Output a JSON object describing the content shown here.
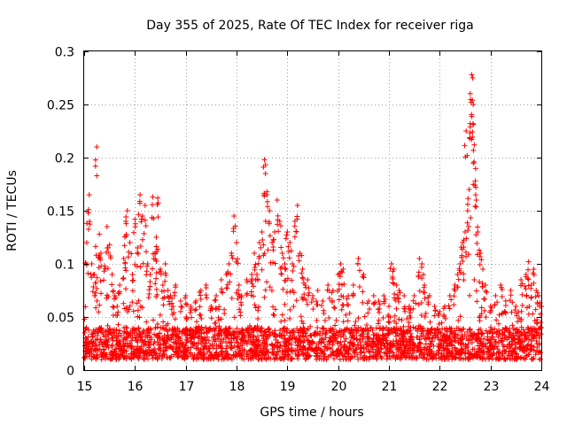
{
  "chart_data": {
    "type": "scatter",
    "title": "Day 355 of 2025, Rate Of TEC Index for receiver riga",
    "xlabel": "GPS time / hours",
    "ylabel": "ROTI / TECUs",
    "xlim": [
      15,
      24
    ],
    "ylim": [
      0,
      0.3
    ],
    "x_ticks": [
      "15",
      "16",
      "17",
      "18",
      "19",
      "20",
      "21",
      "22",
      "23",
      "24"
    ],
    "y_ticks": [
      "0",
      "0.05",
      "0.1",
      "0.15",
      "0.2",
      "0.25",
      "0.3"
    ],
    "grid": true,
    "marker": "+",
    "color": "#ff0000",
    "baseline_range": [
      0.01,
      0.04
    ],
    "series": [
      {
        "name": "ROTI",
        "points": [
          [
            15.05,
            0.12
          ],
          [
            15.08,
            0.148
          ],
          [
            15.1,
            0.165
          ],
          [
            15.15,
            0.1
          ],
          [
            15.2,
            0.09
          ],
          [
            15.22,
            0.082
          ],
          [
            15.25,
            0.21
          ],
          [
            15.3,
            0.128
          ],
          [
            15.33,
            0.11
          ],
          [
            15.4,
            0.098
          ],
          [
            15.45,
            0.135
          ],
          [
            15.5,
            0.118
          ],
          [
            15.55,
            0.09
          ],
          [
            15.6,
            0.07
          ],
          [
            15.65,
            0.06
          ],
          [
            15.7,
            0.08
          ],
          [
            15.78,
            0.105
          ],
          [
            15.82,
            0.14
          ],
          [
            15.85,
            0.15
          ],
          [
            15.9,
            0.12
          ],
          [
            15.95,
            0.09
          ],
          [
            16.0,
            0.142
          ],
          [
            16.05,
            0.115
          ],
          [
            16.1,
            0.165
          ],
          [
            16.15,
            0.145
          ],
          [
            16.2,
            0.155
          ],
          [
            16.25,
            0.1
          ],
          [
            16.3,
            0.09
          ],
          [
            16.35,
            0.163
          ],
          [
            16.4,
            0.11
          ],
          [
            16.42,
            0.125
          ],
          [
            16.45,
            0.162
          ],
          [
            16.5,
            0.095
          ],
          [
            16.55,
            0.08
          ],
          [
            16.6,
            0.1
          ],
          [
            16.65,
            0.075
          ],
          [
            16.7,
            0.07
          ],
          [
            16.75,
            0.06
          ],
          [
            16.8,
            0.08
          ],
          [
            16.9,
            0.065
          ],
          [
            17.0,
            0.07
          ],
          [
            17.1,
            0.06
          ],
          [
            17.2,
            0.065
          ],
          [
            17.3,
            0.075
          ],
          [
            17.4,
            0.08
          ],
          [
            17.5,
            0.06
          ],
          [
            17.6,
            0.07
          ],
          [
            17.7,
            0.085
          ],
          [
            17.8,
            0.09
          ],
          [
            17.85,
            0.1
          ],
          [
            17.9,
            0.11
          ],
          [
            17.95,
            0.145
          ],
          [
            18.0,
            0.12
          ],
          [
            18.05,
            0.08
          ],
          [
            18.1,
            0.07
          ],
          [
            18.2,
            0.085
          ],
          [
            18.3,
            0.09
          ],
          [
            18.35,
            0.11
          ],
          [
            18.4,
            0.09
          ],
          [
            18.45,
            0.12
          ],
          [
            18.5,
            0.13
          ],
          [
            18.55,
            0.198
          ],
          [
            18.57,
            0.185
          ],
          [
            18.6,
            0.165
          ],
          [
            18.65,
            0.15
          ],
          [
            18.7,
            0.12
          ],
          [
            18.75,
            0.13
          ],
          [
            18.8,
            0.16
          ],
          [
            18.85,
            0.14
          ],
          [
            18.9,
            0.11
          ],
          [
            18.95,
            0.1
          ],
          [
            19.0,
            0.13
          ],
          [
            19.05,
            0.12
          ],
          [
            19.1,
            0.1
          ],
          [
            19.15,
            0.14
          ],
          [
            19.2,
            0.155
          ],
          [
            19.25,
            0.11
          ],
          [
            19.3,
            0.095
          ],
          [
            19.35,
            0.08
          ],
          [
            19.4,
            0.085
          ],
          [
            19.5,
            0.07
          ],
          [
            19.6,
            0.075
          ],
          [
            19.7,
            0.065
          ],
          [
            19.8,
            0.08
          ],
          [
            19.9,
            0.075
          ],
          [
            20.0,
            0.09
          ],
          [
            20.05,
            0.1
          ],
          [
            20.1,
            0.095
          ],
          [
            20.2,
            0.07
          ],
          [
            20.3,
            0.08
          ],
          [
            20.4,
            0.105
          ],
          [
            20.5,
            0.09
          ],
          [
            20.6,
            0.065
          ],
          [
            20.7,
            0.07
          ],
          [
            20.8,
            0.065
          ],
          [
            20.9,
            0.07
          ],
          [
            21.0,
            0.06
          ],
          [
            21.05,
            0.1
          ],
          [
            21.1,
            0.095
          ],
          [
            21.15,
            0.08
          ],
          [
            21.2,
            0.075
          ],
          [
            21.3,
            0.07
          ],
          [
            21.4,
            0.06
          ],
          [
            21.5,
            0.07
          ],
          [
            21.6,
            0.105
          ],
          [
            21.65,
            0.1
          ],
          [
            21.7,
            0.08
          ],
          [
            21.8,
            0.07
          ],
          [
            21.9,
            0.06
          ],
          [
            22.0,
            0.055
          ],
          [
            22.1,
            0.06
          ],
          [
            22.2,
            0.07
          ],
          [
            22.3,
            0.08
          ],
          [
            22.35,
            0.09
          ],
          [
            22.4,
            0.1
          ],
          [
            22.45,
            0.12
          ],
          [
            22.5,
            0.13
          ],
          [
            22.52,
            0.225
          ],
          [
            22.55,
            0.15
          ],
          [
            22.58,
            0.17
          ],
          [
            22.6,
            0.232
          ],
          [
            22.62,
            0.252
          ],
          [
            22.63,
            0.278
          ],
          [
            22.65,
            0.275
          ],
          [
            22.66,
            0.25
          ],
          [
            22.68,
            0.212
          ],
          [
            22.7,
            0.178
          ],
          [
            22.72,
            0.16
          ],
          [
            22.75,
            0.13
          ],
          [
            22.8,
            0.11
          ],
          [
            22.85,
            0.095
          ],
          [
            22.9,
            0.08
          ],
          [
            23.0,
            0.06
          ],
          [
            23.1,
            0.07
          ],
          [
            23.2,
            0.08
          ],
          [
            23.3,
            0.065
          ],
          [
            23.4,
            0.075
          ],
          [
            23.5,
            0.06
          ],
          [
            23.6,
            0.085
          ],
          [
            23.7,
            0.09
          ],
          [
            23.75,
            0.102
          ],
          [
            23.8,
            0.08
          ],
          [
            23.85,
            0.095
          ],
          [
            23.9,
            0.075
          ],
          [
            23.95,
            0.07
          ],
          [
            24.0,
            0.06
          ]
        ]
      }
    ]
  }
}
